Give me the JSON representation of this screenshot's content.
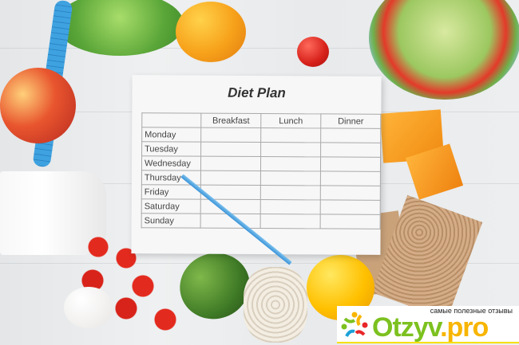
{
  "paper": {
    "title": "Diet Plan",
    "columns": [
      "",
      "Breakfast",
      "Lunch",
      "Dinner"
    ],
    "rows": [
      "Monday",
      "Tuesday",
      "Wednesday",
      "Thursday",
      "Friday",
      "Saturday",
      "Sunday"
    ]
  },
  "watermark": {
    "tagline": "самые полезные отзывы",
    "brand_main": "Otzyv",
    "brand_suffix": ".pro",
    "colors": {
      "green": "#7cc11f",
      "orange": "#f7b500"
    }
  }
}
